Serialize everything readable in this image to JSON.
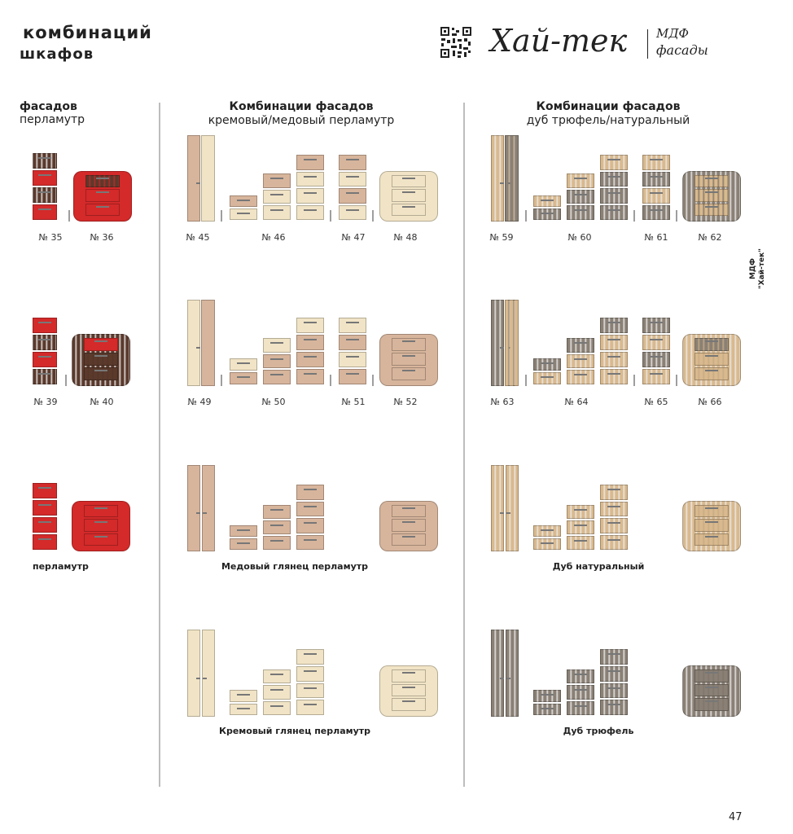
{
  "header": {
    "title_line1": "комбинаций",
    "title_line2": "шкафов",
    "brand_name": "Хай-тек",
    "brand_sub1": "МДФ",
    "brand_sub2": "фасады"
  },
  "side_label": {
    "line1": "МДФ",
    "line2": "\"Хай-тек\""
  },
  "left_section": {
    "head": "фасадов",
    "sub": "перламутр",
    "caption": "перламутр"
  },
  "mid_section": {
    "head": "Комбинации фасадов",
    "sub": "кремовый/медовый перламутр",
    "caption_honey": "Медовый глянец перламутр",
    "caption_cream": "Кремовый глянец перламутр"
  },
  "right_section": {
    "head": "Комбинации фасадов",
    "sub": "дуб трюфель/натуральный",
    "caption_natural": "Дуб натуральный",
    "caption_truffle": "Дуб трюфель"
  },
  "numbers": [
    "№ 35",
    "№ 36",
    "№ 39",
    "№ 40",
    "№ 45",
    "№ 46",
    "№ 47",
    "№ 48",
    "№ 49",
    "№ 50",
    "№ 51",
    "№ 52",
    "№ 59",
    "№ 60",
    "№ 61",
    "№ 62",
    "№ 63",
    "№ 64",
    "№ 65",
    "№ 66"
  ],
  "page_number": "47",
  "colors": {
    "red": "#d42a2a",
    "wenge": "#5b3a2c",
    "cream": "#f1e4c6",
    "honey": "#d7b59c",
    "truffle": "#8a8075",
    "natural_oak": "#d9b98e",
    "divider": "#bdbdbd"
  }
}
